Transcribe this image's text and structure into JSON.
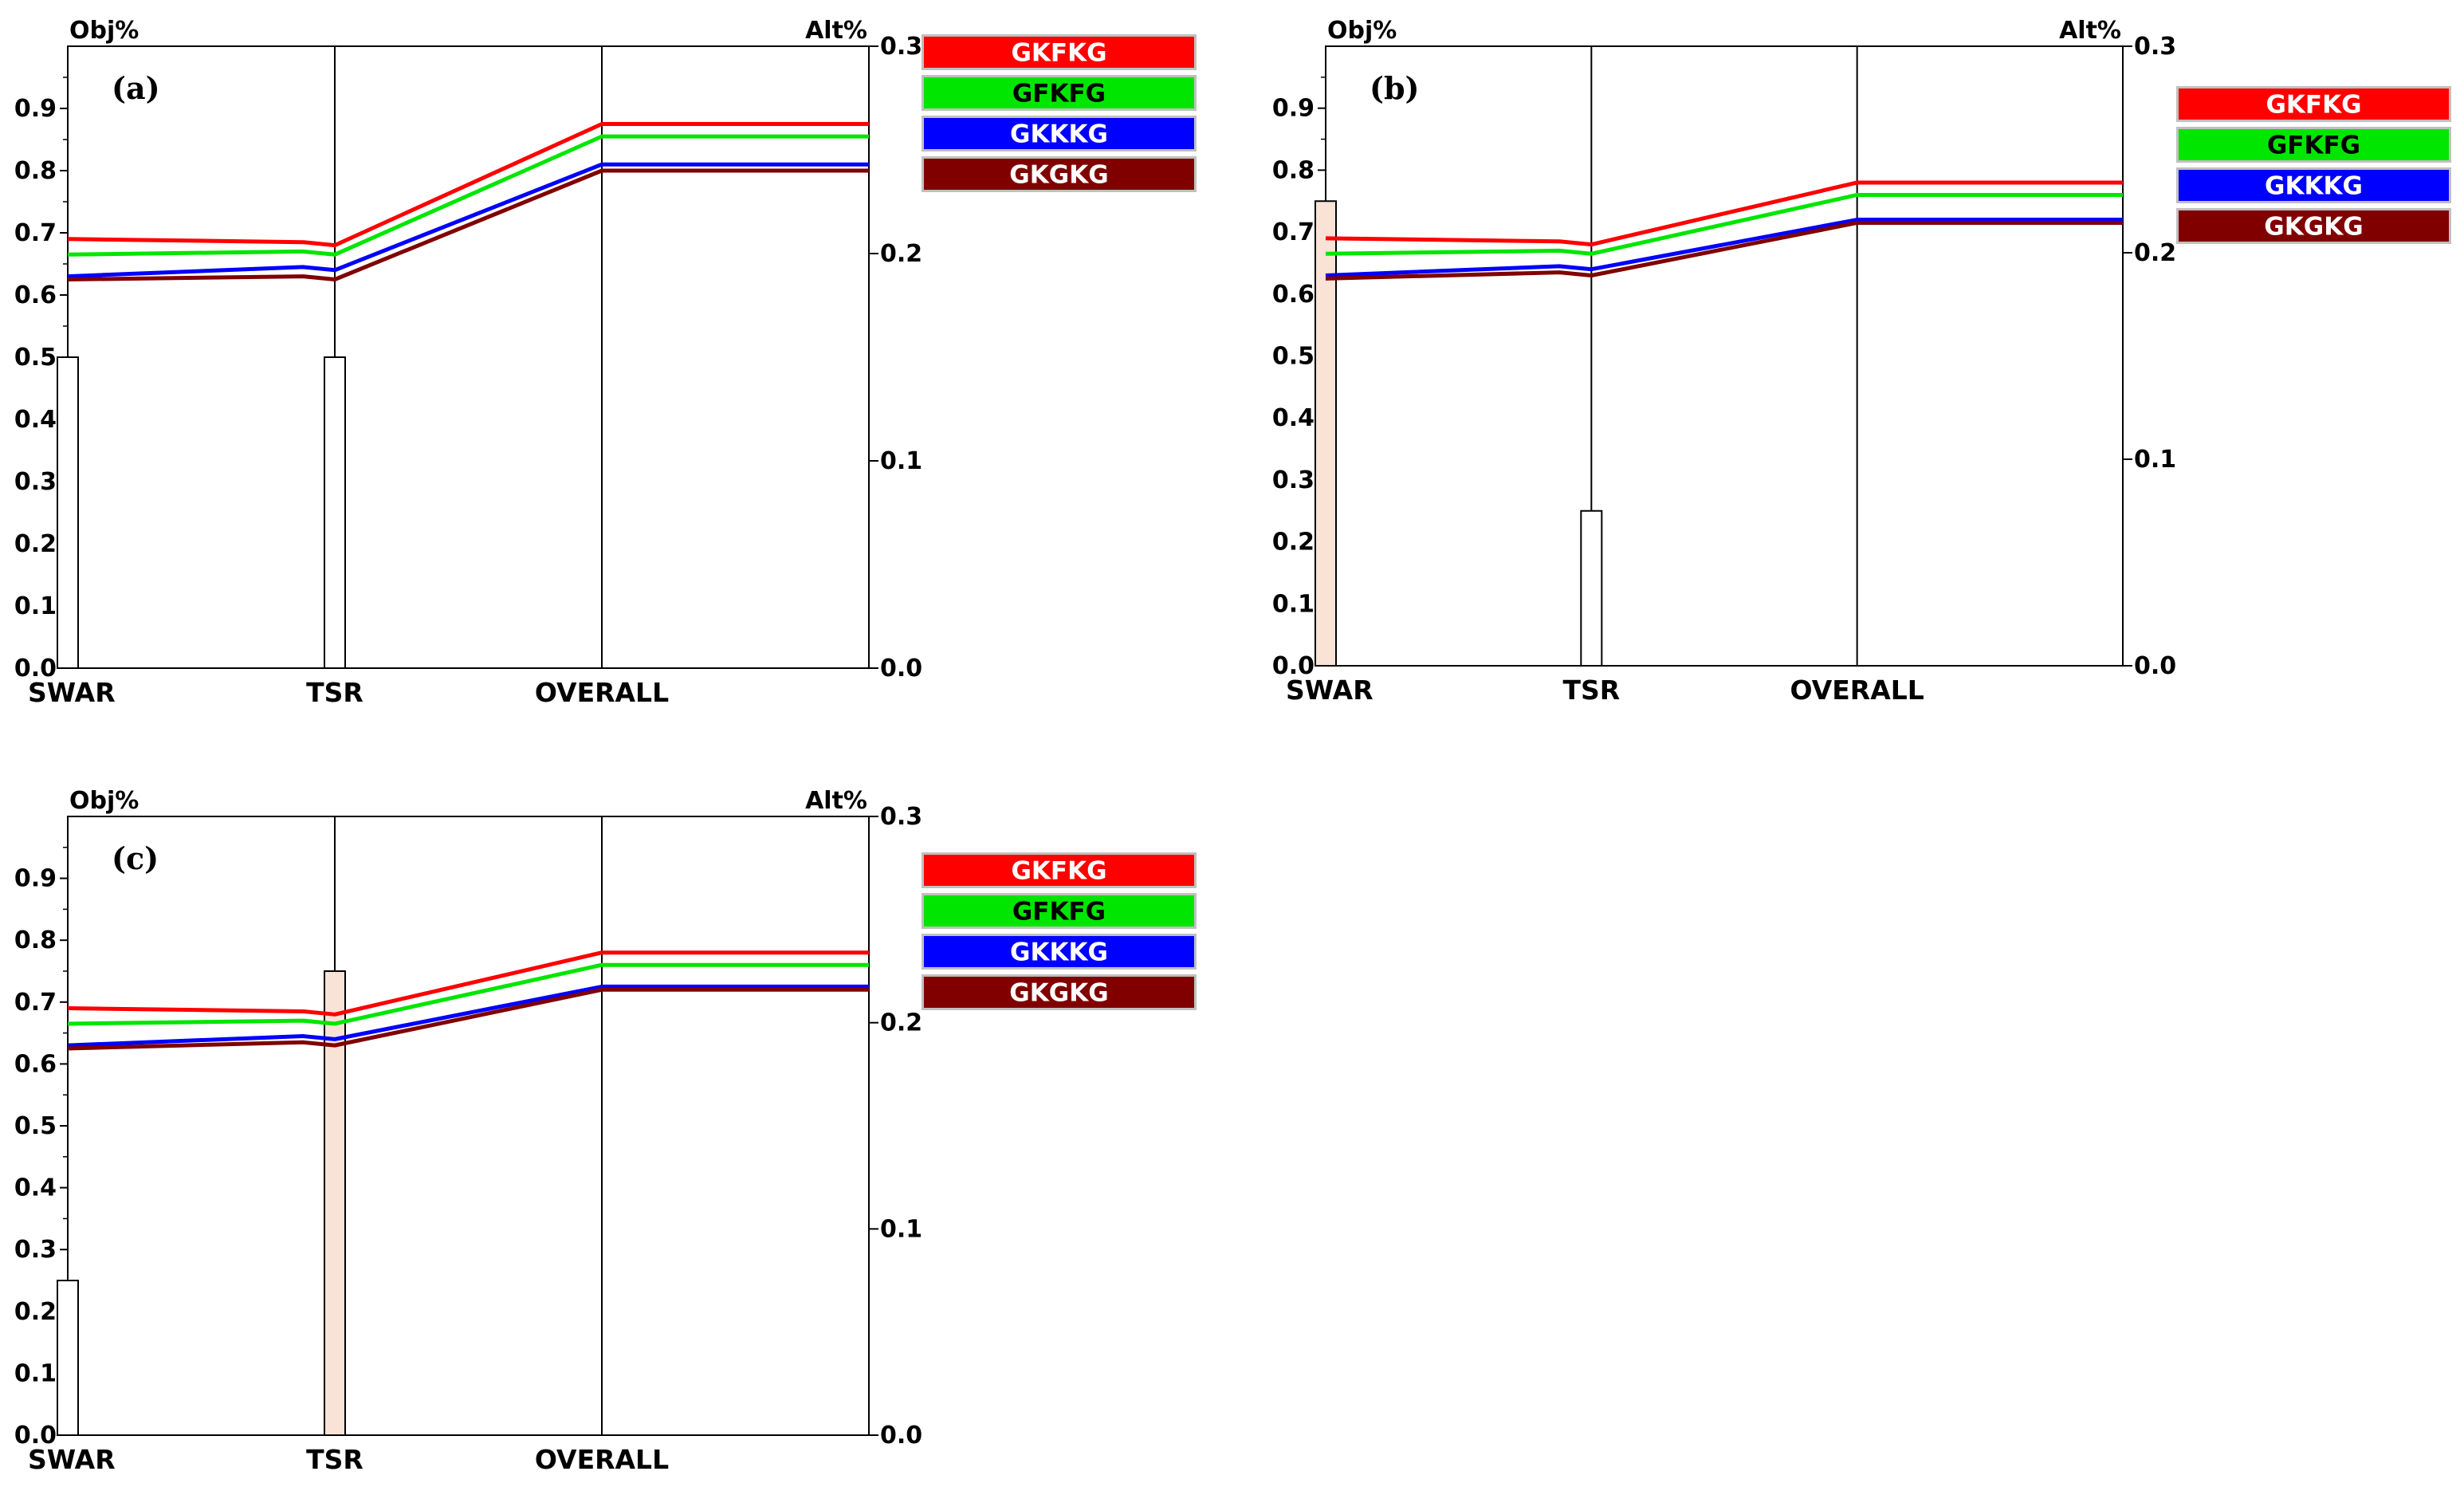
{
  "chart_data": [
    {
      "type": "line",
      "panel_label": "(a)",
      "left_axis_title": "Obj%",
      "right_axis_title": "Alt%",
      "left_ticks": [
        "0.0",
        "0.1",
        "0.2",
        "0.3",
        "0.4",
        "0.5",
        "0.6",
        "0.7",
        "0.8",
        "0.9"
      ],
      "right_ticks": [
        "0.0",
        "0.1",
        "0.2",
        "0.3"
      ],
      "ylim": [
        0,
        1.0
      ],
      "alt_ylim": [
        0,
        0.3
      ],
      "categories": [
        "SWAR",
        "TSR",
        "OVERALL"
      ],
      "weights": [
        {
          "category": "SWAR",
          "value": 0.5,
          "selected": false
        },
        {
          "category": "TSR",
          "value": 0.5,
          "selected": false
        }
      ],
      "series": [
        {
          "name": "GKFKG",
          "color": "#ff0000",
          "text_color": "#ffffff",
          "values": [
            0.69,
            0.68,
            0.875
          ]
        },
        {
          "name": "GFKFG",
          "color": "#00e600",
          "text_color": "#000000",
          "values": [
            0.665,
            0.665,
            0.855
          ]
        },
        {
          "name": "GKKKG",
          "color": "#0000ff",
          "text_color": "#ffffff",
          "values": [
            0.63,
            0.64,
            0.81
          ]
        },
        {
          "name": "GKGKG",
          "color": "#800000",
          "text_color": "#ffffff",
          "values": [
            0.625,
            0.625,
            0.8
          ]
        }
      ]
    },
    {
      "type": "line",
      "panel_label": "(b)",
      "left_axis_title": "Obj%",
      "right_axis_title": "Alt%",
      "left_ticks": [
        "0.0",
        "0.1",
        "0.2",
        "0.3",
        "0.4",
        "0.5",
        "0.6",
        "0.7",
        "0.8",
        "0.9"
      ],
      "right_ticks": [
        "0.0",
        "0.1",
        "0.2",
        "0.3"
      ],
      "ylim": [
        0,
        1.0
      ],
      "alt_ylim": [
        0,
        0.3
      ],
      "categories": [
        "SWAR",
        "TSR",
        "OVERALL"
      ],
      "weights": [
        {
          "category": "SWAR",
          "value": 0.75,
          "selected": true
        },
        {
          "category": "TSR",
          "value": 0.25,
          "selected": false
        }
      ],
      "series": [
        {
          "name": "GKFKG",
          "color": "#ff0000",
          "text_color": "#ffffff",
          "values": [
            0.69,
            0.68,
            0.78
          ]
        },
        {
          "name": "GFKFG",
          "color": "#00e600",
          "text_color": "#000000",
          "values": [
            0.665,
            0.665,
            0.76
          ]
        },
        {
          "name": "GKKKG",
          "color": "#0000ff",
          "text_color": "#ffffff",
          "values": [
            0.63,
            0.64,
            0.72
          ]
        },
        {
          "name": "GKGKG",
          "color": "#800000",
          "text_color": "#ffffff",
          "values": [
            0.625,
            0.63,
            0.715
          ]
        }
      ]
    },
    {
      "type": "line",
      "panel_label": "(c)",
      "left_axis_title": "Obj%",
      "right_axis_title": "Alt%",
      "left_ticks": [
        "0.0",
        "0.1",
        "0.2",
        "0.3",
        "0.4",
        "0.5",
        "0.6",
        "0.7",
        "0.8",
        "0.9"
      ],
      "right_ticks": [
        "0.0",
        "0.1",
        "0.2",
        "0.3"
      ],
      "ylim": [
        0,
        1.0
      ],
      "alt_ylim": [
        0,
        0.3
      ],
      "categories": [
        "SWAR",
        "TSR",
        "OVERALL"
      ],
      "weights": [
        {
          "category": "SWAR",
          "value": 0.25,
          "selected": false
        },
        {
          "category": "TSR",
          "value": 0.75,
          "selected": true
        }
      ],
      "series": [
        {
          "name": "GKFKG",
          "color": "#ff0000",
          "text_color": "#ffffff",
          "values": [
            0.69,
            0.68,
            0.78
          ]
        },
        {
          "name": "GFKFG",
          "color": "#00e600",
          "text_color": "#000000",
          "values": [
            0.665,
            0.665,
            0.76
          ]
        },
        {
          "name": "GKKKG",
          "color": "#0000ff",
          "text_color": "#ffffff",
          "values": [
            0.63,
            0.64,
            0.725
          ]
        },
        {
          "name": "GKGKG",
          "color": "#800000",
          "text_color": "#ffffff",
          "values": [
            0.625,
            0.63,
            0.72
          ]
        }
      ]
    }
  ]
}
